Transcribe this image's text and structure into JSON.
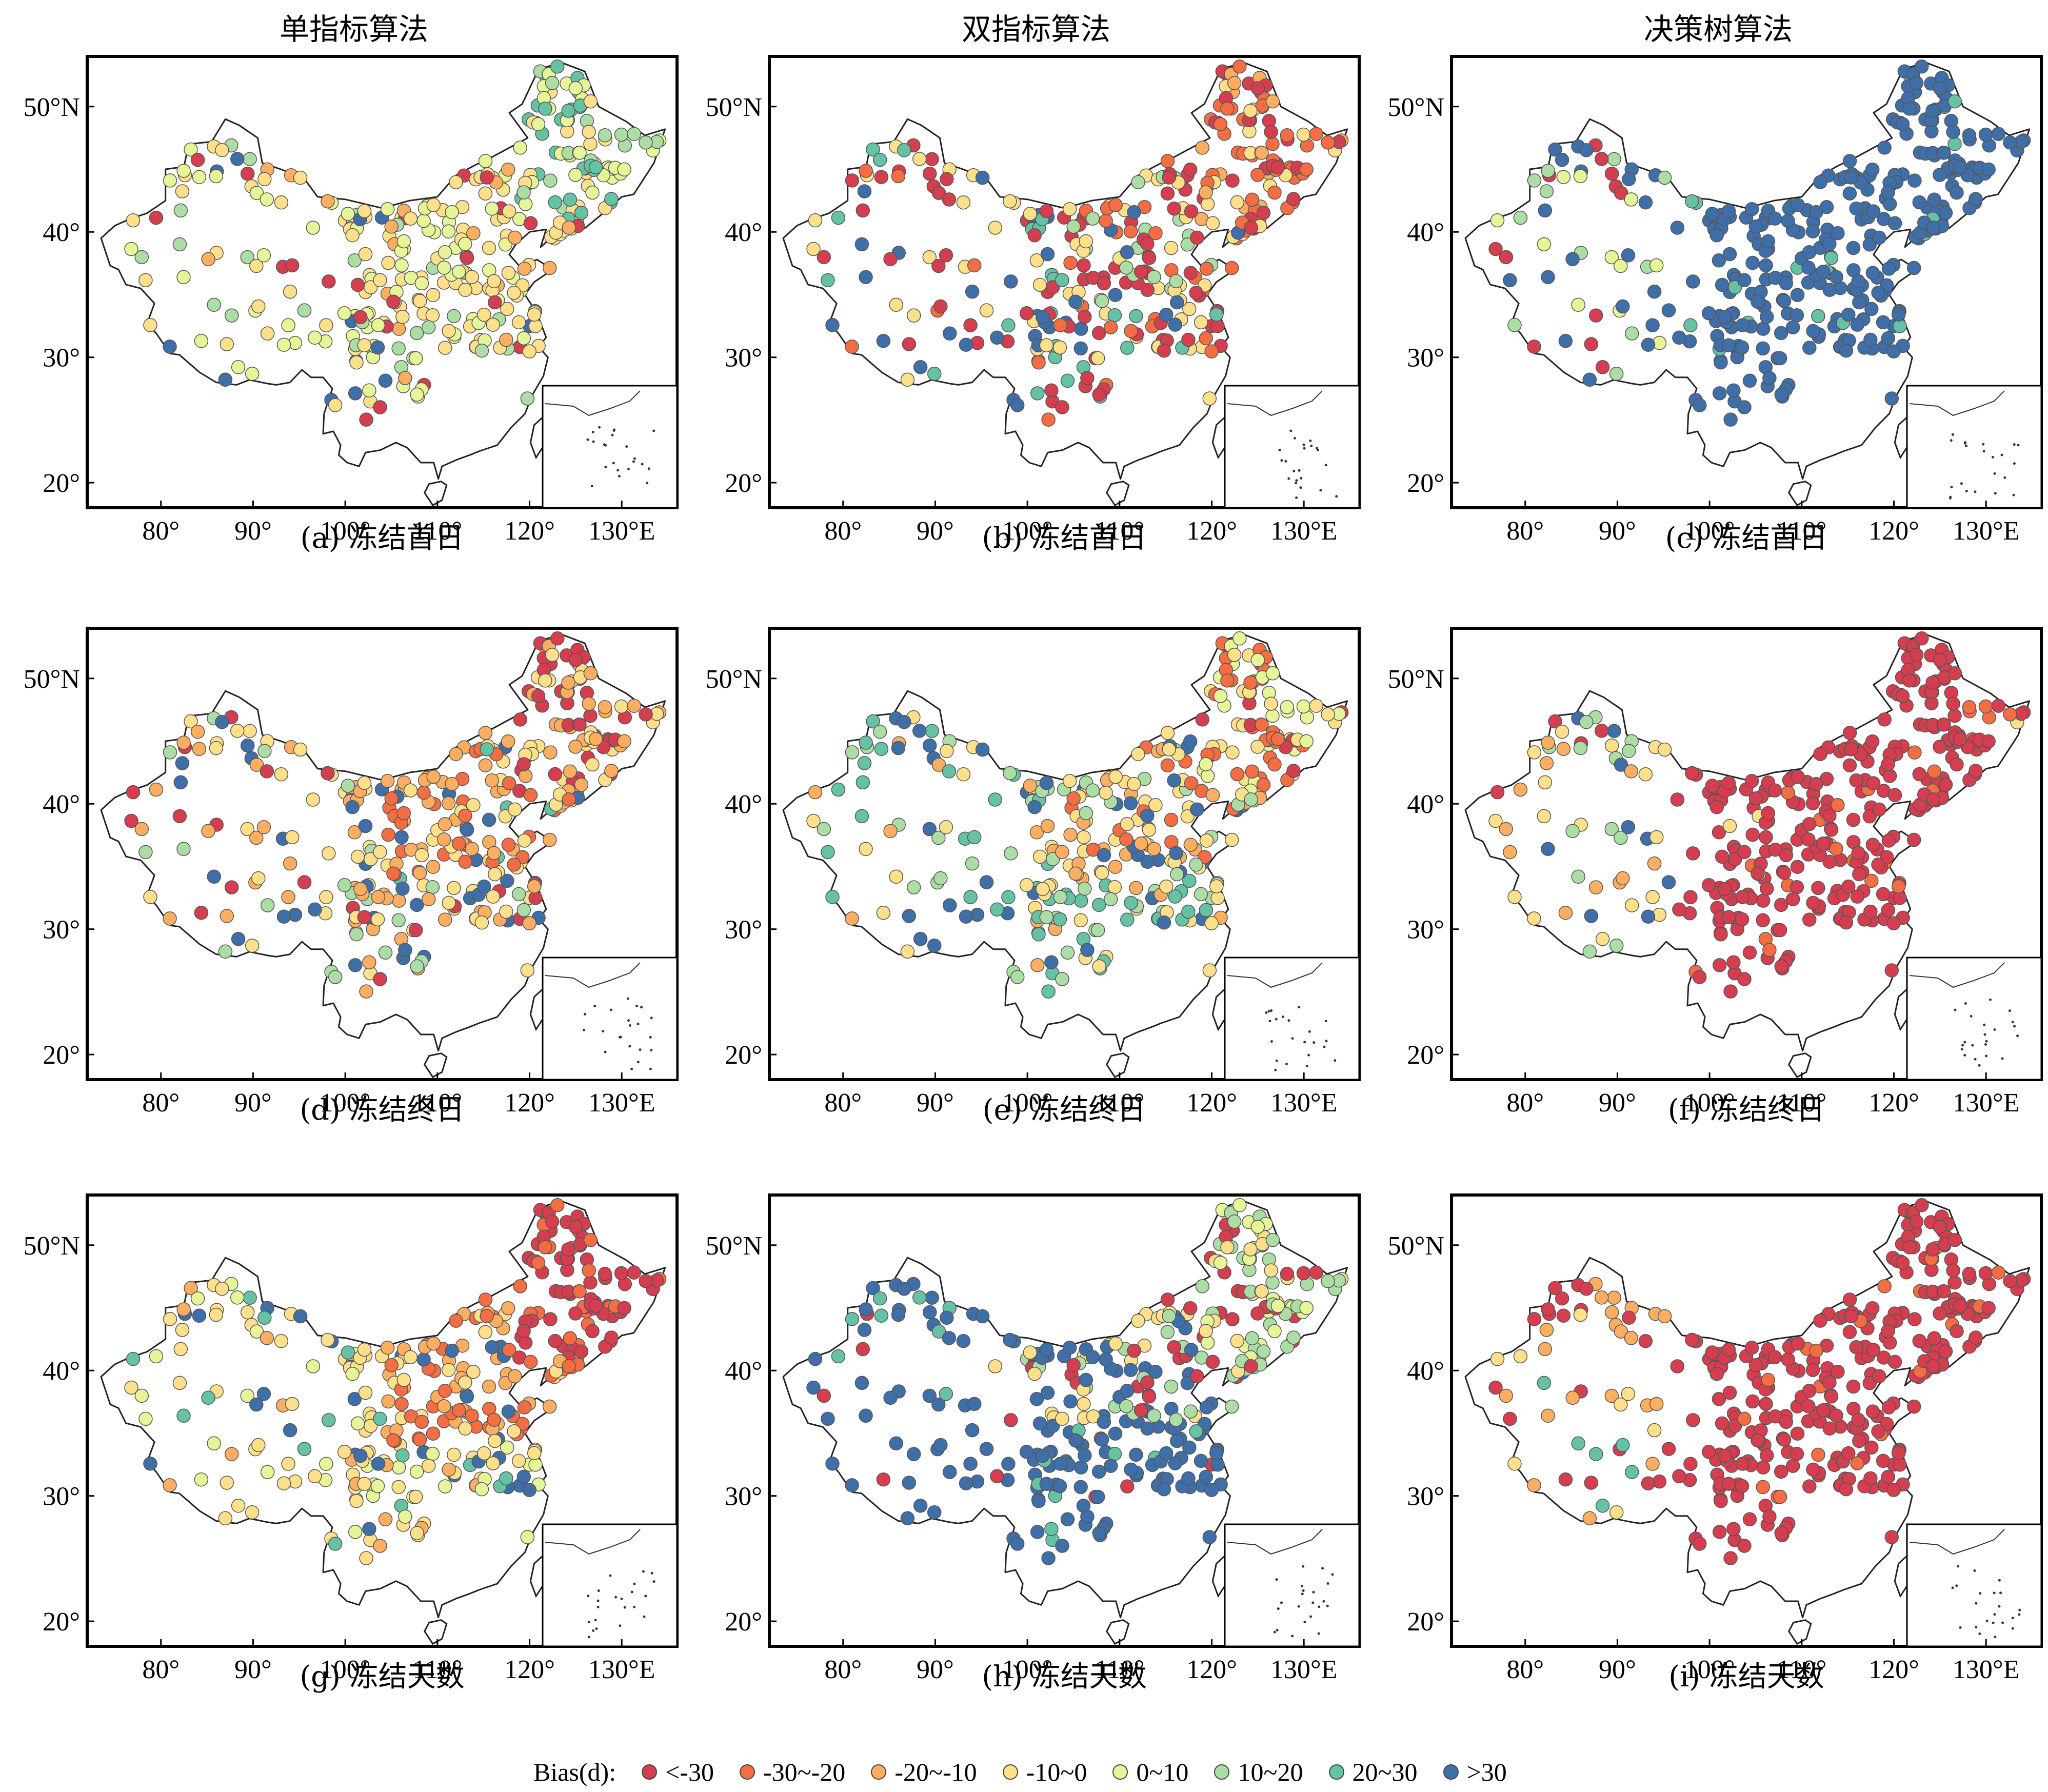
{
  "column_titles": [
    "单指标算法",
    "双指标算法",
    "决策树算法"
  ],
  "legend": {
    "title": "Bias(d):",
    "classes": [
      {
        "label": "<-30",
        "color": "#d53e4f"
      },
      {
        "label": "-30~-20",
        "color": "#f46d43"
      },
      {
        "label": "-20~-10",
        "color": "#fdae61"
      },
      {
        "label": "-10~0",
        "color": "#fee08b"
      },
      {
        "label": "0~10",
        "color": "#e6f598"
      },
      {
        "label": "10~20",
        "color": "#abdda4"
      },
      {
        "label": "20~30",
        "color": "#66c2a5"
      },
      {
        "label": ">30",
        "color": "#3f6fa8"
      }
    ]
  },
  "axes": {
    "x_ticks": [
      "80°",
      "90°",
      "100°",
      "110°",
      "120°",
      "130°E"
    ],
    "y_ticks": [
      "50°N",
      "40°",
      "30°",
      "20°"
    ],
    "lon_range": [
      72,
      136
    ],
    "lat_range": [
      18,
      54
    ],
    "x_tick_values": [
      80,
      90,
      100,
      110,
      120,
      130
    ],
    "y_tick_values": [
      50,
      40,
      30,
      20
    ]
  },
  "panels": [
    {
      "caption": "(a) 冻结首日",
      "scheme": "a"
    },
    {
      "caption": "(b) 冻结首日",
      "scheme": "b"
    },
    {
      "caption": "(c) 冻结首日",
      "scheme": "c"
    },
    {
      "caption": "(d) 冻结终日",
      "scheme": "d"
    },
    {
      "caption": "(e) 冻结终日",
      "scheme": "e"
    },
    {
      "caption": "(f) 冻结终日",
      "scheme": "f"
    },
    {
      "caption": "(g) 冻结天数",
      "scheme": "g"
    },
    {
      "caption": "(h) 冻结天数",
      "scheme": "h"
    },
    {
      "caption": "(i) 冻结天数",
      "scheme": "i"
    }
  ]
}
